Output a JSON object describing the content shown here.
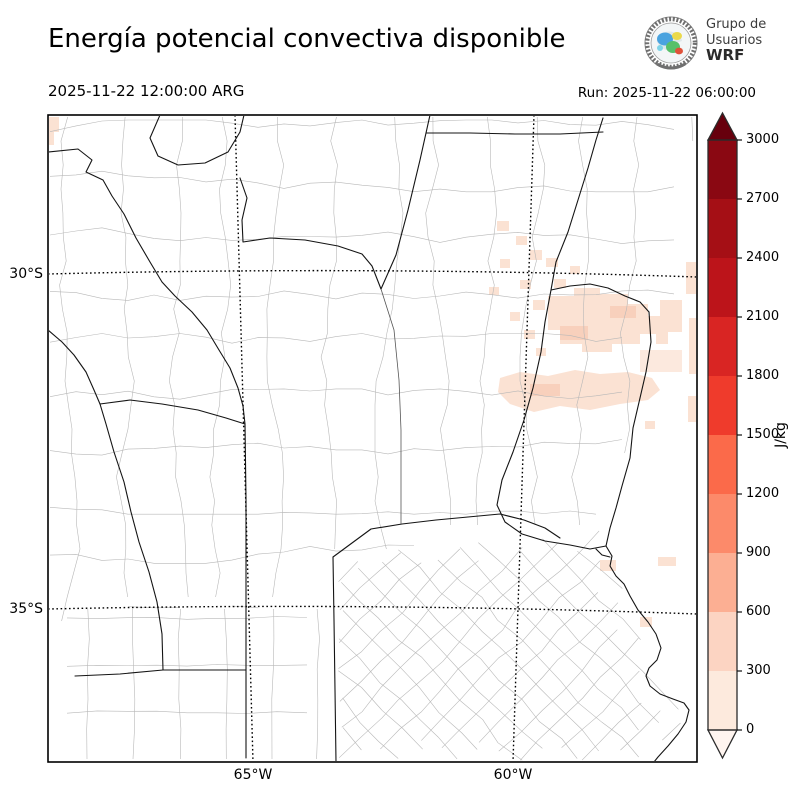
{
  "header": {
    "title": "Energía potencial convectiva disponible",
    "valid_time": "2025-11-22 12:00:00 ARG",
    "run_time": "Run: 2025-11-22 06:00:00"
  },
  "logo": {
    "line1": "Grupo de",
    "line2": "Usuarios",
    "line3": "WRF"
  },
  "map": {
    "lat_labels": [
      "30°S",
      "35°S"
    ],
    "lon_labels": [
      "65°W",
      "60°W"
    ]
  },
  "colorbar": {
    "unit": "J/kg",
    "tick_labels": [
      "3000",
      "2700",
      "2400",
      "2100",
      "1800",
      "1500",
      "1200",
      "900",
      "600",
      "300",
      "0"
    ],
    "segment_colors_top_to_bottom": [
      "#8a0812",
      "#a50f15",
      "#bc141a",
      "#d92523",
      "#ef3b2c",
      "#fb6a4a",
      "#fc8a6a",
      "#fcaf93",
      "#fcd4c2",
      "#fdeadd"
    ],
    "over_color": "#67000d",
    "under_color": "#fff5f0"
  },
  "chart_data": {
    "type": "heatmap",
    "title": "Energía potencial convectiva disponible",
    "units": "J/kg",
    "valid_time": "2025-11-22 12:00:00 ARG",
    "run_time": "2025-11-22 06:00:00",
    "colorbar_levels": [
      0,
      300,
      600,
      900,
      1200,
      1500,
      1800,
      2100,
      2400,
      2700,
      3000
    ],
    "colorbar_colors_low_to_high": [
      "#fdeadd",
      "#fcd4c2",
      "#fcaf93",
      "#fc8a6a",
      "#fb6a4a",
      "#ef3b2c",
      "#d92523",
      "#bc141a",
      "#a50f15",
      "#8a0812"
    ],
    "x_axis_ticks": [
      "65°W",
      "60°W"
    ],
    "y_axis_ticks": [
      "30°S",
      "35°S"
    ],
    "field_summary": "CAPE mostly near 0 J/kg over the domain; scattered very light patches (0-600 J/kg) over the northeast sector and near the Río de la Plata"
  }
}
